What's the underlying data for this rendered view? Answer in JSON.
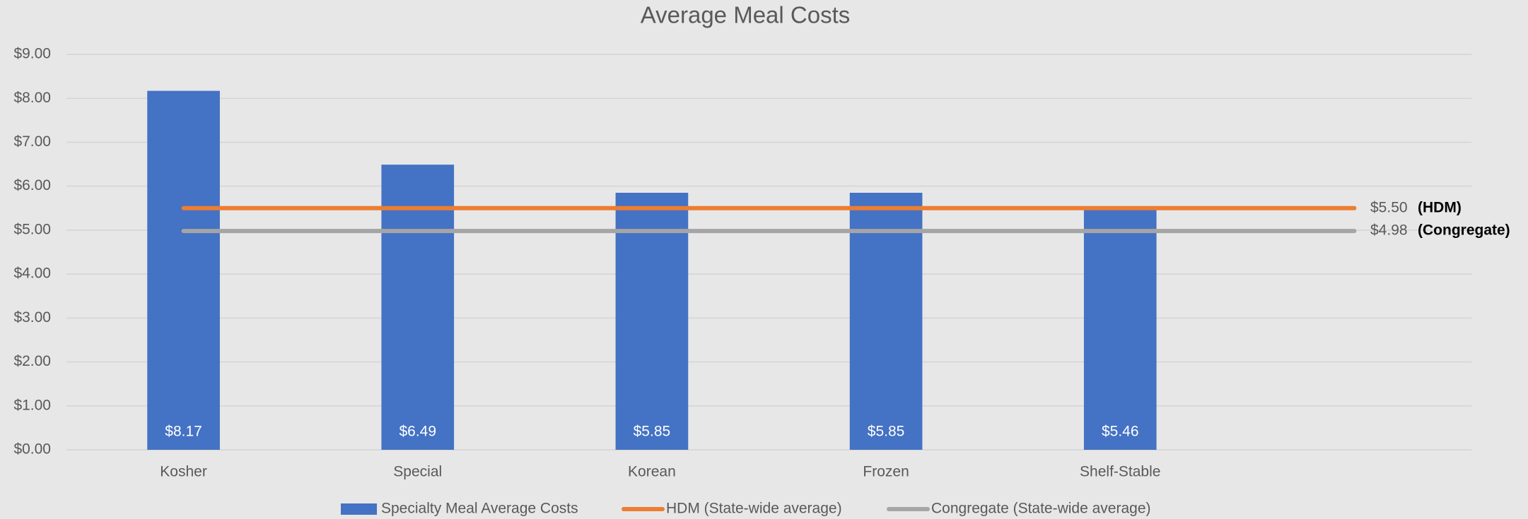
{
  "chart_data": {
    "type": "bar",
    "title": "Average Meal Costs",
    "categories": [
      "Kosher",
      "Special",
      "Korean",
      "Frozen",
      "Shelf-Stable",
      null
    ],
    "series": [
      {
        "name": "Specialty Meal Average Costs",
        "type": "bar",
        "color": "#4472c4",
        "values": [
          8.17,
          6.49,
          5.85,
          5.85,
          5.46,
          null
        ],
        "value_labels": [
          "$8.17",
          "$6.49",
          "$5.85",
          "$5.85",
          "$5.46",
          null
        ]
      },
      {
        "name": "HDM (State-wide average)",
        "type": "line",
        "color": "#ed7d31",
        "values": [
          5.5,
          5.5,
          5.5,
          5.5,
          5.5,
          5.5
        ],
        "value_labels": [
          null,
          null,
          null,
          null,
          null,
          "$5.50"
        ],
        "end_label": "(HDM)"
      },
      {
        "name": "Congregate (State-wide average)",
        "type": "line",
        "color": "#a5a5a5",
        "values": [
          4.98,
          4.98,
          4.98,
          4.98,
          4.98,
          4.98
        ],
        "value_labels": [
          null,
          null,
          null,
          null,
          null,
          "$4.98"
        ],
        "end_label": "(Congregate)"
      }
    ],
    "ylim": [
      0,
      9
    ],
    "yticks": [
      {
        "value": 0,
        "label": "$0.00"
      },
      {
        "value": 1,
        "label": "$1.00"
      },
      {
        "value": 2,
        "label": "$2.00"
      },
      {
        "value": 3,
        "label": "$3.00"
      },
      {
        "value": 4,
        "label": "$4.00"
      },
      {
        "value": 5,
        "label": "$5.00"
      },
      {
        "value": 6,
        "label": "$6.00"
      },
      {
        "value": 7,
        "label": "$7.00"
      },
      {
        "value": 8,
        "label": "$8.00"
      },
      {
        "value": 9,
        "label": "$9.00"
      }
    ],
    "grid": true,
    "legend": "bottom"
  }
}
